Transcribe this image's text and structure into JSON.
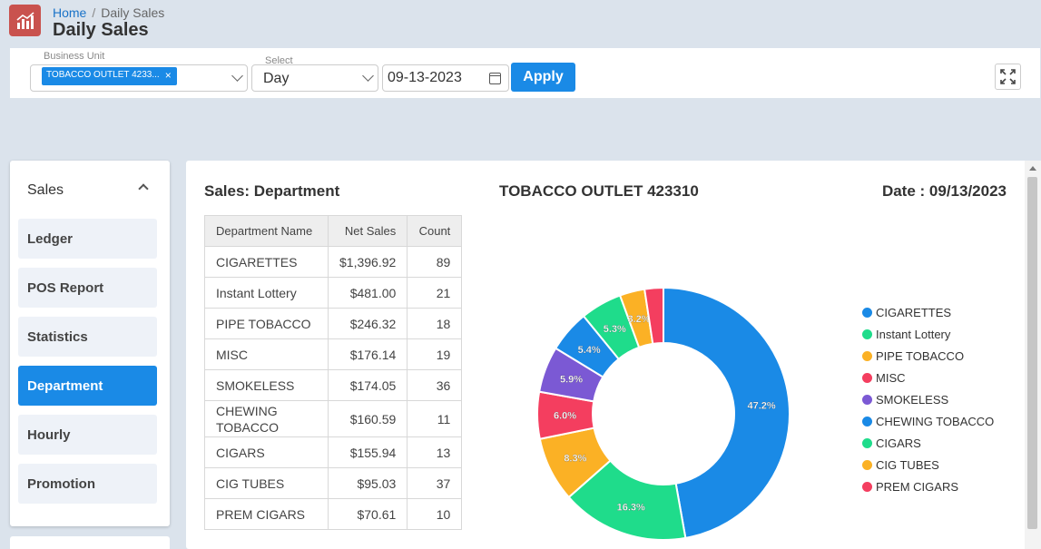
{
  "header": {
    "breadcrumb_home": "Home",
    "breadcrumb_sep": "/",
    "breadcrumb_current": "Daily Sales",
    "title": "Daily Sales",
    "logo_icon": "bar-chart-icon",
    "logo_color": "#c9524e"
  },
  "filters": {
    "business_unit_label": "Business Unit",
    "business_unit_chip": "TOBACCO OUTLET 4233...",
    "chip_remove": "×",
    "select_label": "Select",
    "select_value": "Day",
    "date_value": "09-13-2023",
    "apply_label": "Apply",
    "accent_color": "#1a8ae6"
  },
  "sidebar": {
    "heading": "Sales",
    "items": [
      {
        "label": "Ledger",
        "active": false
      },
      {
        "label": "POS Report",
        "active": false
      },
      {
        "label": "Statistics",
        "active": false
      },
      {
        "label": "Department",
        "active": true
      },
      {
        "label": "Hourly",
        "active": false
      },
      {
        "label": "Promotion",
        "active": false
      }
    ]
  },
  "main": {
    "section_title": "Sales: Department",
    "store_title": "TOBACCO OUTLET 423310",
    "date_title": "Date : 09/13/2023",
    "table": {
      "headers": [
        "Department Name",
        "Net Sales",
        "Count"
      ],
      "rows": [
        {
          "name": "CIGARETTES",
          "net_sales": "$1,396.92",
          "count": "89"
        },
        {
          "name": "Instant Lottery",
          "net_sales": "$481.00",
          "count": "21"
        },
        {
          "name": "PIPE TOBACCO",
          "net_sales": "$246.32",
          "count": "18"
        },
        {
          "name": "MISC",
          "net_sales": "$176.14",
          "count": "19"
        },
        {
          "name": "SMOKELESS",
          "net_sales": "$174.05",
          "count": "36"
        },
        {
          "name": "CHEWING TOBACCO",
          "net_sales": "$160.59",
          "count": "11"
        },
        {
          "name": "CIGARS",
          "net_sales": "$155.94",
          "count": "13"
        },
        {
          "name": "CIG TUBES",
          "net_sales": "$95.03",
          "count": "37"
        },
        {
          "name": "PREM CIGARS",
          "net_sales": "$70.61",
          "count": "10"
        }
      ]
    }
  },
  "chart_data": {
    "type": "pie",
    "variant": "donut",
    "legend_position": "right",
    "slices": [
      {
        "label": "CIGARETTES",
        "value": 47.2,
        "color": "#1a8ae6"
      },
      {
        "label": "Instant Lottery",
        "value": 16.3,
        "color": "#1fdc8b"
      },
      {
        "label": "PIPE TOBACCO",
        "value": 8.3,
        "color": "#fbb125"
      },
      {
        "label": "MISC",
        "value": 6.0,
        "color": "#f43e5f"
      },
      {
        "label": "SMOKELESS",
        "value": 5.9,
        "color": "#7b59d4"
      },
      {
        "label": "CHEWING TOBACCO",
        "value": 5.4,
        "color": "#1a8ae6"
      },
      {
        "label": "CIGARS",
        "value": 5.3,
        "color": "#1fdc8b"
      },
      {
        "label": "CIG TUBES",
        "value": 3.2,
        "color": "#fbb125"
      },
      {
        "label": "PREM CIGARS",
        "value": 2.4,
        "color": "#f43e5f"
      }
    ]
  }
}
